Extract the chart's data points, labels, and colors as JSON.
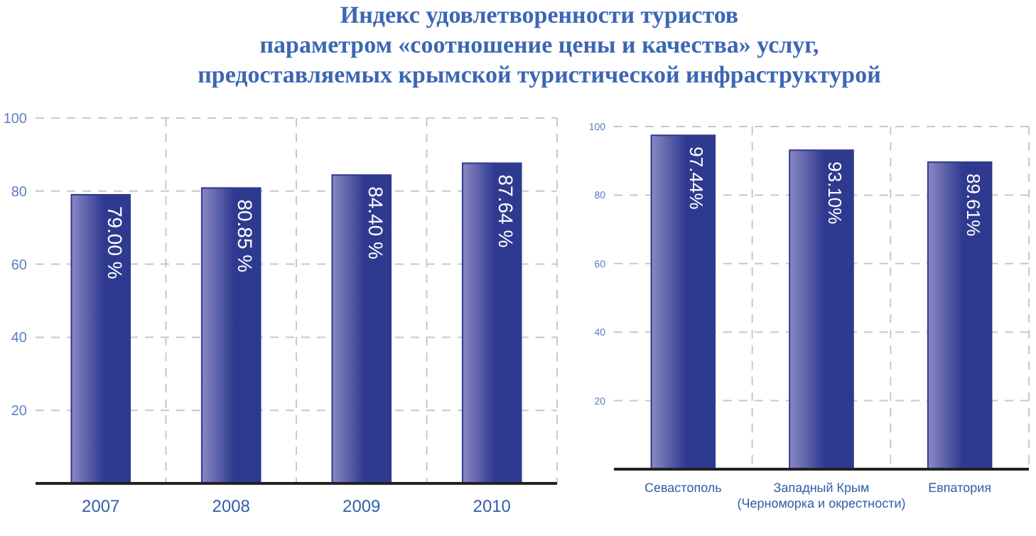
{
  "chart_data": [
    {
      "type": "bar",
      "title": "Индекс удовлетворенности туристов\nпараметром «соотношение цены и качества» услуг,\nпредоставляемых крымской туристической инфраструктурой",
      "categories": [
        "2007",
        "2008",
        "2009",
        "2010"
      ],
      "values": [
        79.0,
        80.85,
        84.4,
        87.64
      ],
      "value_labels": [
        "79.00 %",
        "80.85 %",
        "84.40 %",
        "87.64 %"
      ],
      "color": "#2e3a8f",
      "ylim": [
        0,
        100
      ],
      "yticks": [
        {
          "value": 0,
          "label": null
        },
        20,
        40,
        60,
        80,
        100
      ],
      "grid": true
    },
    {
      "type": "bar",
      "categories": [
        "Севастополь",
        "Западный Крым (Черноморка и окрестности)",
        "Евпатория"
      ],
      "values": [
        97.44,
        93.1,
        89.61
      ],
      "value_labels": [
        "97.44%",
        "93.10%",
        "89.61%"
      ],
      "color": "#2e3a8f",
      "ylim": [
        0,
        100
      ],
      "yticks": [
        {
          "value": 0,
          "label": null
        },
        20,
        40,
        60,
        80,
        100
      ],
      "grid": true
    }
  ]
}
